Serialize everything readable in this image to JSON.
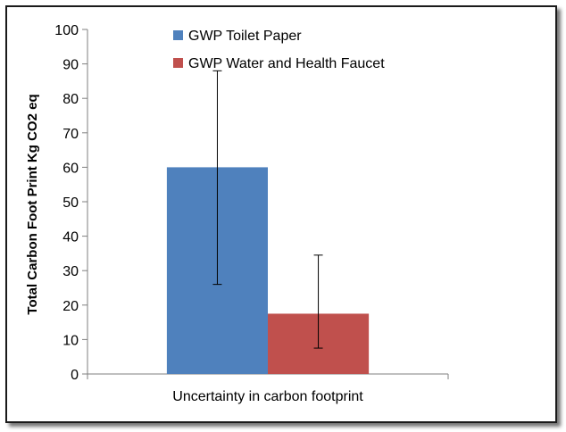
{
  "chart_data": {
    "type": "bar",
    "title": "",
    "xlabel": "",
    "ylabel": "Total Carbon Foot Print Kg CO2 eq",
    "categories": [
      "Uncertainty in carbon footprint"
    ],
    "ylim": [
      0,
      100
    ],
    "yticks": [
      0,
      10,
      20,
      30,
      40,
      50,
      60,
      70,
      80,
      90,
      100
    ],
    "grid": false,
    "legend_position": "top",
    "series": [
      {
        "name": "GWP Toilet Paper",
        "values": [
          60
        ],
        "error_low": [
          26
        ],
        "error_high": [
          88
        ],
        "color": "#4f81bd"
      },
      {
        "name": "GWP Water and Health Faucet",
        "values": [
          17.5
        ],
        "error_low": [
          7.5
        ],
        "error_high": [
          34.5
        ],
        "color": "#c0504d"
      }
    ]
  }
}
